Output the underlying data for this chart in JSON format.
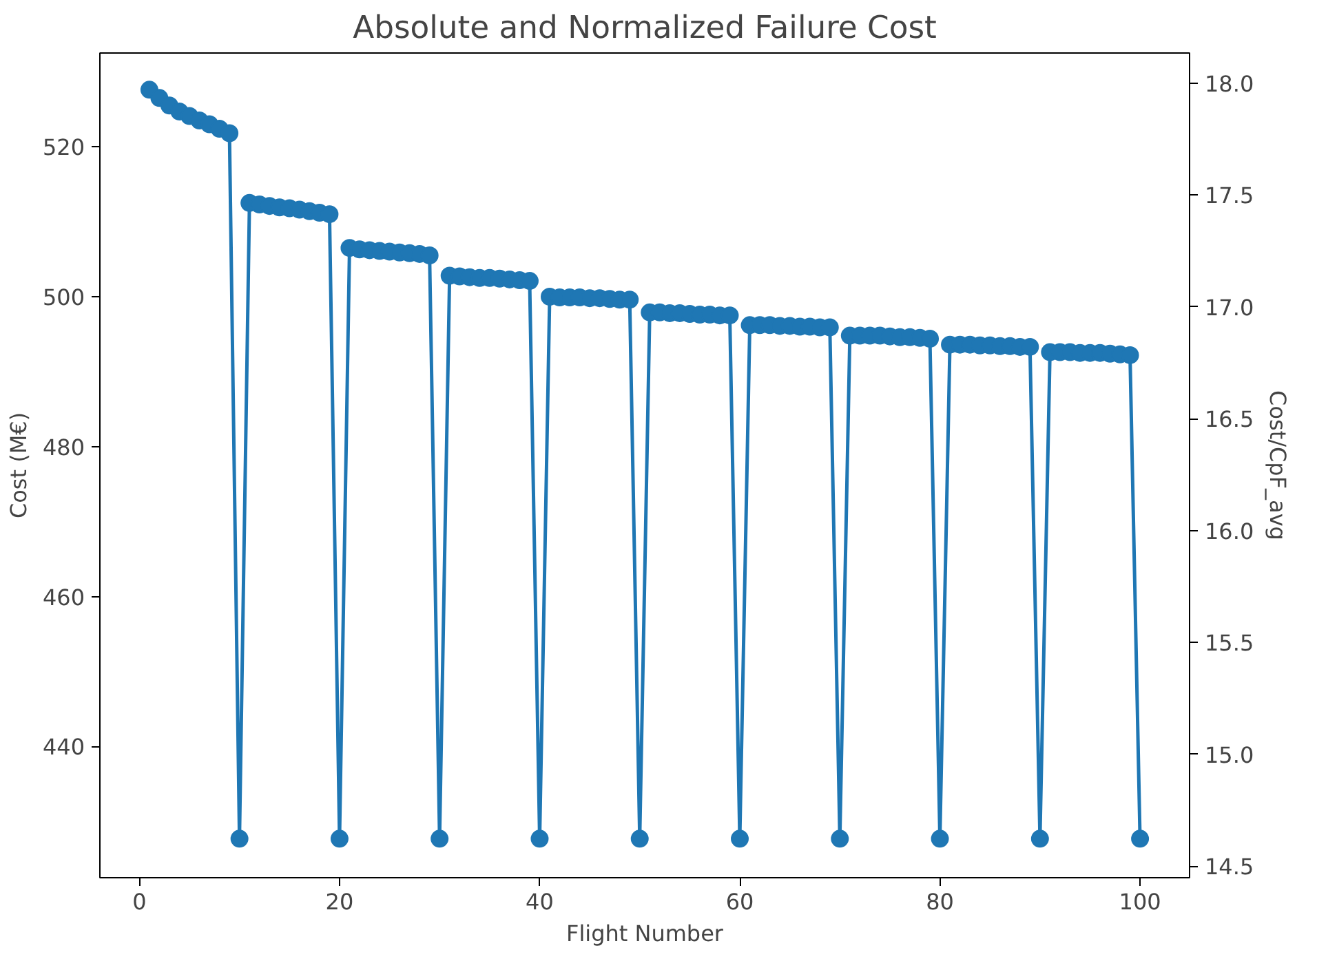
{
  "chart_data": {
    "type": "line",
    "title": "Absolute and Normalized Failure Cost",
    "xlabel": "Flight Number",
    "ylabel": "Cost (M€)",
    "y2label": "Cost/CpF_avg",
    "x": [
      1,
      2,
      3,
      4,
      5,
      6,
      7,
      8,
      9,
      10,
      11,
      12,
      13,
      14,
      15,
      16,
      17,
      18,
      19,
      20,
      21,
      22,
      23,
      24,
      25,
      26,
      27,
      28,
      29,
      30,
      31,
      32,
      33,
      34,
      35,
      36,
      37,
      38,
      39,
      40,
      41,
      42,
      43,
      44,
      45,
      46,
      47,
      48,
      49,
      50,
      51,
      52,
      53,
      54,
      55,
      56,
      57,
      58,
      59,
      60,
      61,
      62,
      63,
      64,
      65,
      66,
      67,
      68,
      69,
      70,
      71,
      72,
      73,
      74,
      75,
      76,
      77,
      78,
      79,
      80,
      81,
      82,
      83,
      84,
      85,
      86,
      87,
      88,
      89,
      90,
      91,
      92,
      93,
      94,
      95,
      96,
      97,
      98,
      99,
      100
    ],
    "series": [
      {
        "color": "#1f77b4",
        "values": [
          527.6,
          526.5,
          525.5,
          524.7,
          524.1,
          523.5,
          523.0,
          522.4,
          521.8,
          427.7,
          512.5,
          512.3,
          512.1,
          511.9,
          511.8,
          511.6,
          511.4,
          511.2,
          511.0,
          427.7,
          506.5,
          506.3,
          506.2,
          506.1,
          506.0,
          505.9,
          505.8,
          505.7,
          505.5,
          427.7,
          502.8,
          502.7,
          502.6,
          502.5,
          502.5,
          502.4,
          502.3,
          502.2,
          502.1,
          427.7,
          500.0,
          499.9,
          499.9,
          499.9,
          499.8,
          499.8,
          499.7,
          499.6,
          499.6,
          427.7,
          497.9,
          497.9,
          497.8,
          497.8,
          497.7,
          497.6,
          497.6,
          497.5,
          497.5,
          427.7,
          496.2,
          496.2,
          496.2,
          496.1,
          496.1,
          496.0,
          496.0,
          495.9,
          495.9,
          427.7,
          494.8,
          494.8,
          494.8,
          494.8,
          494.7,
          494.6,
          494.6,
          494.5,
          494.4,
          427.7,
          493.6,
          493.6,
          493.6,
          493.5,
          493.5,
          493.4,
          493.4,
          493.3,
          493.3,
          427.7,
          492.6,
          492.6,
          492.6,
          492.5,
          492.5,
          492.5,
          492.4,
          492.3,
          492.2,
          427.7
        ]
      }
    ],
    "xlim": [
      -3.95,
      104.95
    ],
    "xticks": [
      0,
      20,
      40,
      60,
      80,
      100
    ],
    "ylim": [
      422.5,
      532.5
    ],
    "yticks": [
      440,
      460,
      480,
      500,
      520
    ],
    "y2lim": [
      14.449,
      18.134
    ],
    "y2ticks": [
      {
        "value": 14.5,
        "label": "14.5"
      },
      {
        "value": 15.0,
        "label": "15.0"
      },
      {
        "value": 15.5,
        "label": "15.5"
      },
      {
        "value": 16.0,
        "label": "16.0"
      },
      {
        "value": 16.5,
        "label": "16.5"
      },
      {
        "value": 17.0,
        "label": "17.0"
      },
      {
        "value": 17.5,
        "label": "17.5"
      },
      {
        "value": 18.0,
        "label": "18.0"
      }
    ],
    "marker": "circle",
    "line_style": "solid",
    "grid": false
  }
}
